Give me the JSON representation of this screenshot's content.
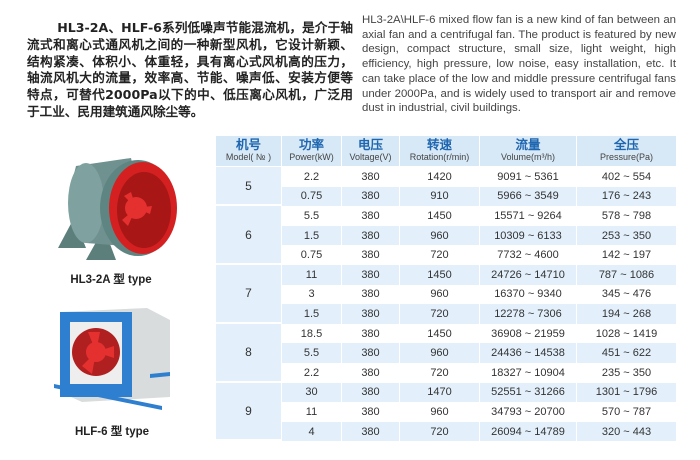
{
  "intro_cn": "HL3-2A、HLF-6系列低噪声节能混流机，是介于轴 流式和离心式通风机之间的一种新型风机，它设计新颖、结构紧凑、体积小、体重轻，具有离心式风机高的压力，轴流风机大的流量，效率高、节能、噪声低、安装方便等特点，可替代2000Pa以下的中、低压离心风机，广泛用于工业、民用建筑通风除尘等。",
  "intro_en": "HL3-2A\\HLF-6 mixed flow fan is a new kind of fan between an axial fan and a centrifugal fan. The product is featured by new design, compact structure, small size, light weight, high efficiency, high pressure, low noise, easy installation, etc. It can take place of the low and middle pressure centrifugal fans under 2000Pa, and is widely used to transport air and remove dust in industrial, civil buildings.",
  "products": [
    {
      "caption": "HL3-2A 型 type"
    },
    {
      "caption": "HLF-6 型 type"
    }
  ],
  "table": {
    "headers": [
      {
        "zh": "机号",
        "en": "Model( № )"
      },
      {
        "zh": "功率",
        "en": "Power(kW)"
      },
      {
        "zh": "电压",
        "en": "Voltage(V)"
      },
      {
        "zh": "转速",
        "en": "Rotation(r/min)"
      },
      {
        "zh": "流量",
        "en": "Volume(m³/h)"
      },
      {
        "zh": "全压",
        "en": "Pressure(Pa)"
      }
    ],
    "groups": [
      {
        "model": "5",
        "rows": [
          [
            "2.2",
            "380",
            "1420",
            "9091 ~ 5361",
            "402 ~ 554"
          ],
          [
            "0.75",
            "380",
            "910",
            "5966 ~ 3549",
            "176 ~ 243"
          ]
        ]
      },
      {
        "model": "6",
        "rows": [
          [
            "5.5",
            "380",
            "1450",
            "15571 ~ 9264",
            "578 ~ 798"
          ],
          [
            "1.5",
            "380",
            "960",
            "10309 ~ 6133",
            "253 ~ 350"
          ],
          [
            "0.75",
            "380",
            "720",
            "7732 ~ 4600",
            "142 ~ 197"
          ]
        ]
      },
      {
        "model": "7",
        "rows": [
          [
            "11",
            "380",
            "1450",
            "24726 ~ 14710",
            "787 ~ 1086"
          ],
          [
            "3",
            "380",
            "960",
            "16370 ~ 9340",
            "345 ~ 476"
          ],
          [
            "1.5",
            "380",
            "720",
            "12278 ~ 7306",
            "194 ~ 268"
          ]
        ]
      },
      {
        "model": "8",
        "rows": [
          [
            "18.5",
            "380",
            "1450",
            "36908 ~ 21959",
            "1028 ~ 1419"
          ],
          [
            "5.5",
            "380",
            "960",
            "24436 ~ 14538",
            "451 ~ 622"
          ],
          [
            "2.2",
            "380",
            "720",
            "18327 ~ 10904",
            "235 ~ 350"
          ]
        ]
      },
      {
        "model": "9",
        "rows": [
          [
            "30",
            "380",
            "1470",
            "52551 ~ 31266",
            "1301 ~ 1796"
          ],
          [
            "11",
            "380",
            "960",
            "34793 ~ 20700",
            "570 ~ 787"
          ],
          [
            "4",
            "380",
            "720",
            "26094 ~ 14789",
            "320 ~ 443"
          ]
        ]
      }
    ]
  },
  "colors": {
    "header_bg": "#d7e8f6",
    "header_text": "#1f66b0",
    "stripe": "#e3f0fb",
    "fan_red": "#d42020",
    "frame_blue": "#2f7fd0"
  }
}
